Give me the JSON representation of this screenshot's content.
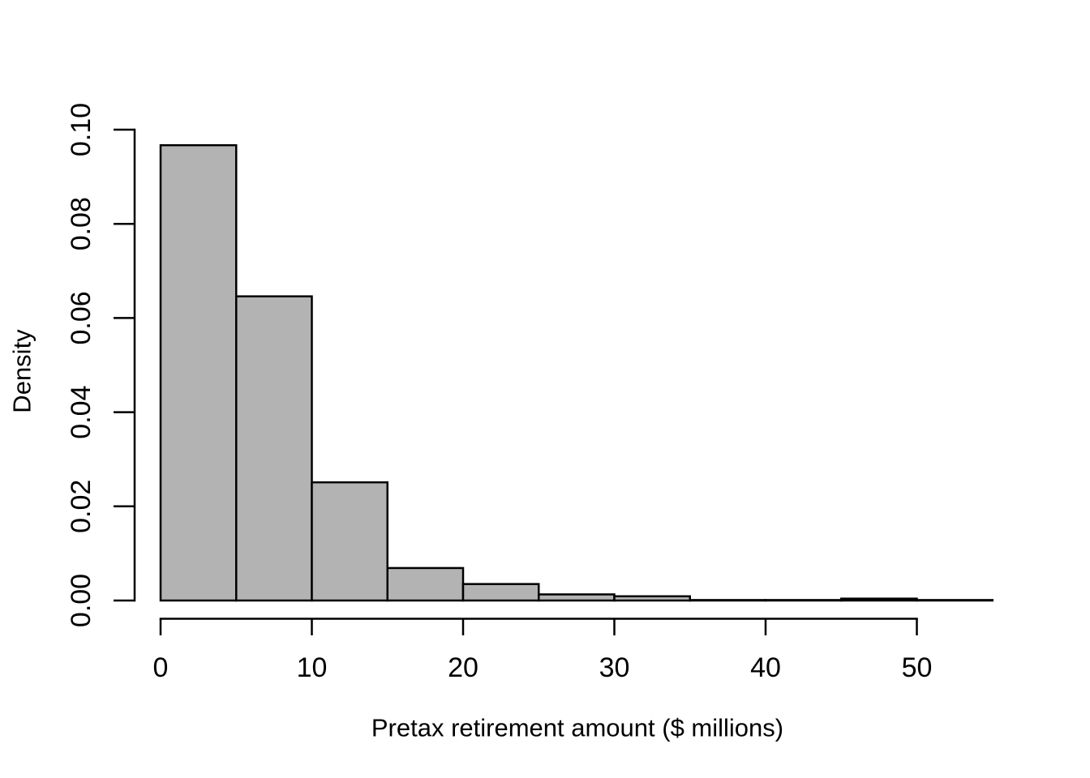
{
  "figure": {
    "background": "#ffffff",
    "text_color": "#000000"
  },
  "chart_data": {
    "type": "bar",
    "subtype": "histogram",
    "title": "",
    "xlabel": "Pretax retirement amount ($ millions)",
    "ylabel": "Density",
    "bin_edges": [
      0,
      5,
      10,
      15,
      20,
      25,
      30,
      35,
      40,
      45,
      50,
      55
    ],
    "densities": [
      0.0967,
      0.0646,
      0.0251,
      0.0069,
      0.0035,
      0.0013,
      0.0009,
      0.0001,
      0.0001,
      0.0004,
      0.0001
    ],
    "x_tick_values": [
      0,
      10,
      20,
      30,
      40,
      50
    ],
    "x_tick_labels": [
      "0",
      "10",
      "20",
      "30",
      "40",
      "50"
    ],
    "y_tick_values": [
      0,
      0.02,
      0.04,
      0.06,
      0.08,
      0.1
    ],
    "y_tick_labels": [
      "0.00",
      "0.02",
      "0.04",
      "0.06",
      "0.08",
      "0.10"
    ],
    "xlim": [
      0,
      55
    ],
    "ylim": [
      0,
      0.1
    ],
    "bar_fill": "#b3b3b3",
    "bar_stroke": "#000000",
    "axis_color": "#000000",
    "grid": false,
    "legend": false
  }
}
